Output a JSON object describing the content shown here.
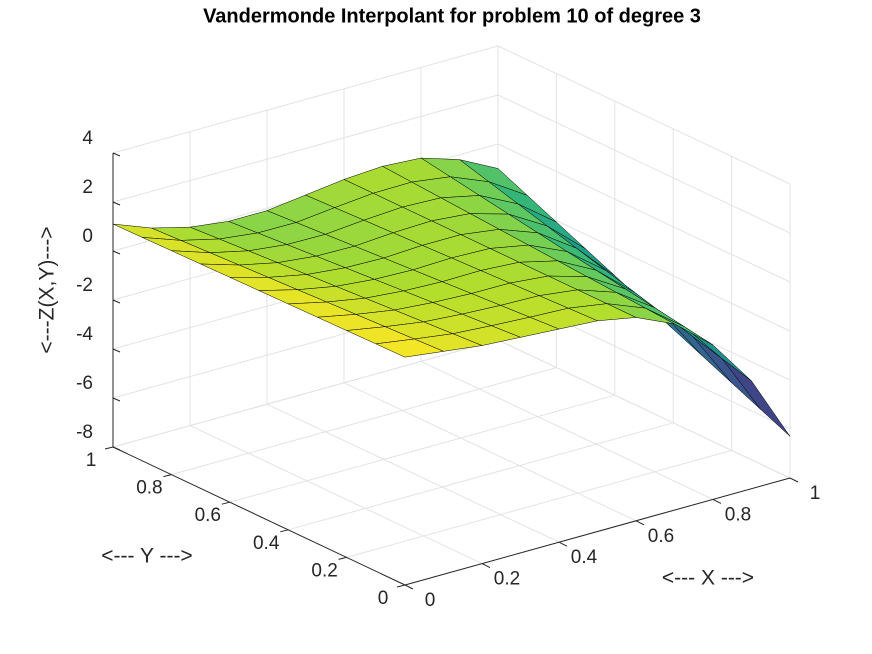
{
  "chart_data": {
    "type": "surface",
    "title": "Vandermonde Interpolant for problem 10 of degree 3",
    "xlabel": "<--- X --->",
    "ylabel": "<--- Y --->",
    "zlabel": "<---Z(X,Y)--->",
    "x": [
      0,
      0.1,
      0.2,
      0.3,
      0.4,
      0.5,
      0.6,
      0.7,
      0.8,
      0.9,
      1
    ],
    "y": [
      0,
      0.1,
      0.2,
      0.3,
      0.4,
      0.5,
      0.6,
      0.7,
      0.8,
      0.9,
      1
    ],
    "z": [
      [
        1.3,
        1.1,
        0.9,
        0.8,
        0.7,
        0.6,
        0.3,
        -0.4,
        -1.7,
        -3.6,
        -6.3
      ],
      [
        1.28,
        1.04,
        0.82,
        0.71,
        0.62,
        0.55,
        0.3,
        -0.32,
        -1.5,
        -3.26,
        -5.77
      ],
      [
        1.26,
        0.98,
        0.74,
        0.62,
        0.54,
        0.5,
        0.3,
        -0.24,
        -1.3,
        -2.92,
        -5.24
      ],
      [
        1.24,
        0.92,
        0.66,
        0.53,
        0.46,
        0.45,
        0.3,
        -0.16,
        -1.1,
        -2.58,
        -4.71
      ],
      [
        1.22,
        0.86,
        0.58,
        0.44,
        0.38,
        0.4,
        0.3,
        -0.08,
        -0.9,
        -2.24,
        -4.18
      ],
      [
        1.2,
        0.8,
        0.5,
        0.35,
        0.3,
        0.35,
        0.3,
        0,
        -0.7,
        -1.9,
        -3.65
      ],
      [
        1.18,
        0.74,
        0.42,
        0.26,
        0.22,
        0.3,
        0.3,
        0.08,
        -0.5,
        -1.56,
        -3.12
      ],
      [
        1.16,
        0.68,
        0.34,
        0.17,
        0.14,
        0.25,
        0.3,
        0.16,
        -0.3,
        -1.22,
        -2.59
      ],
      [
        1.14,
        0.62,
        0.26,
        0.08,
        0.06,
        0.2,
        0.3,
        0.24,
        -0.1,
        -0.88,
        -2.06
      ],
      [
        1.12,
        0.56,
        0.18,
        -0.01,
        -0.02,
        0.15,
        0.3,
        0.32,
        0.1,
        -0.54,
        -1.53
      ],
      [
        1.1,
        0.5,
        0.1,
        -0.1,
        -0.1,
        0.1,
        0.3,
        0.4,
        0.3,
        -0.2,
        -1.0
      ]
    ],
    "xlim": [
      0,
      1
    ],
    "ylim": [
      0,
      1
    ],
    "zlim": [
      -8,
      4
    ],
    "xticks": [
      0,
      0.2,
      0.4,
      0.6,
      0.8,
      1
    ],
    "yticks": [
      0,
      0.2,
      0.4,
      0.6,
      0.8,
      1
    ],
    "zticks": [
      -8,
      -6,
      -4,
      -2,
      0,
      2,
      4
    ],
    "grid": true,
    "colormap": "viridis",
    "edge_color": "#000000"
  }
}
